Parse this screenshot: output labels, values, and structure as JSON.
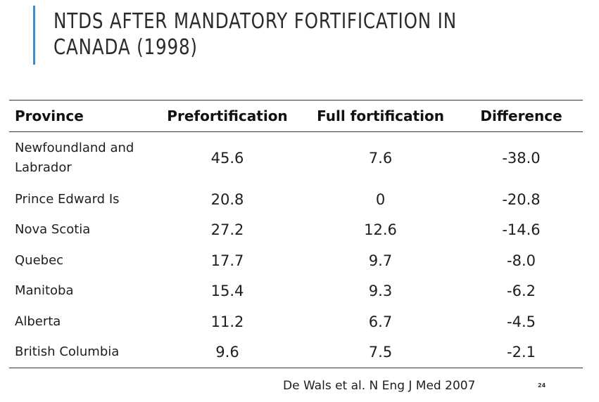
{
  "slide": {
    "title": "NTDs after mandatory fortification in Canada (1998)",
    "citation": "De Wals et al. N Eng J Med 2007",
    "page_number": "24",
    "accent_color": "#3a8fd1"
  },
  "table": {
    "headers": [
      "Province",
      "Prefortification",
      "Full fortification",
      "Difference"
    ],
    "rows": [
      {
        "province": "Newfoundland and Labrador",
        "pre": "45.6",
        "full": "7.6",
        "diff": "-38.0"
      },
      {
        "province": "Prince Edward Is",
        "pre": "20.8",
        "full": "0",
        "diff": "-20.8"
      },
      {
        "province": "Nova Scotia",
        "pre": "27.2",
        "full": "12.6",
        "diff": "-14.6"
      },
      {
        "province": "Quebec",
        "pre": "17.7",
        "full": "9.7",
        "diff": "-8.0"
      },
      {
        "province": "Manitoba",
        "pre": "15.4",
        "full": "9.3",
        "diff": "-6.2"
      },
      {
        "province": "Alberta",
        "pre": "11.2",
        "full": "6.7",
        "diff": "-4.5"
      },
      {
        "province": "British Columbia",
        "pre": "9.6",
        "full": "7.5",
        "diff": "-2.1"
      }
    ]
  }
}
